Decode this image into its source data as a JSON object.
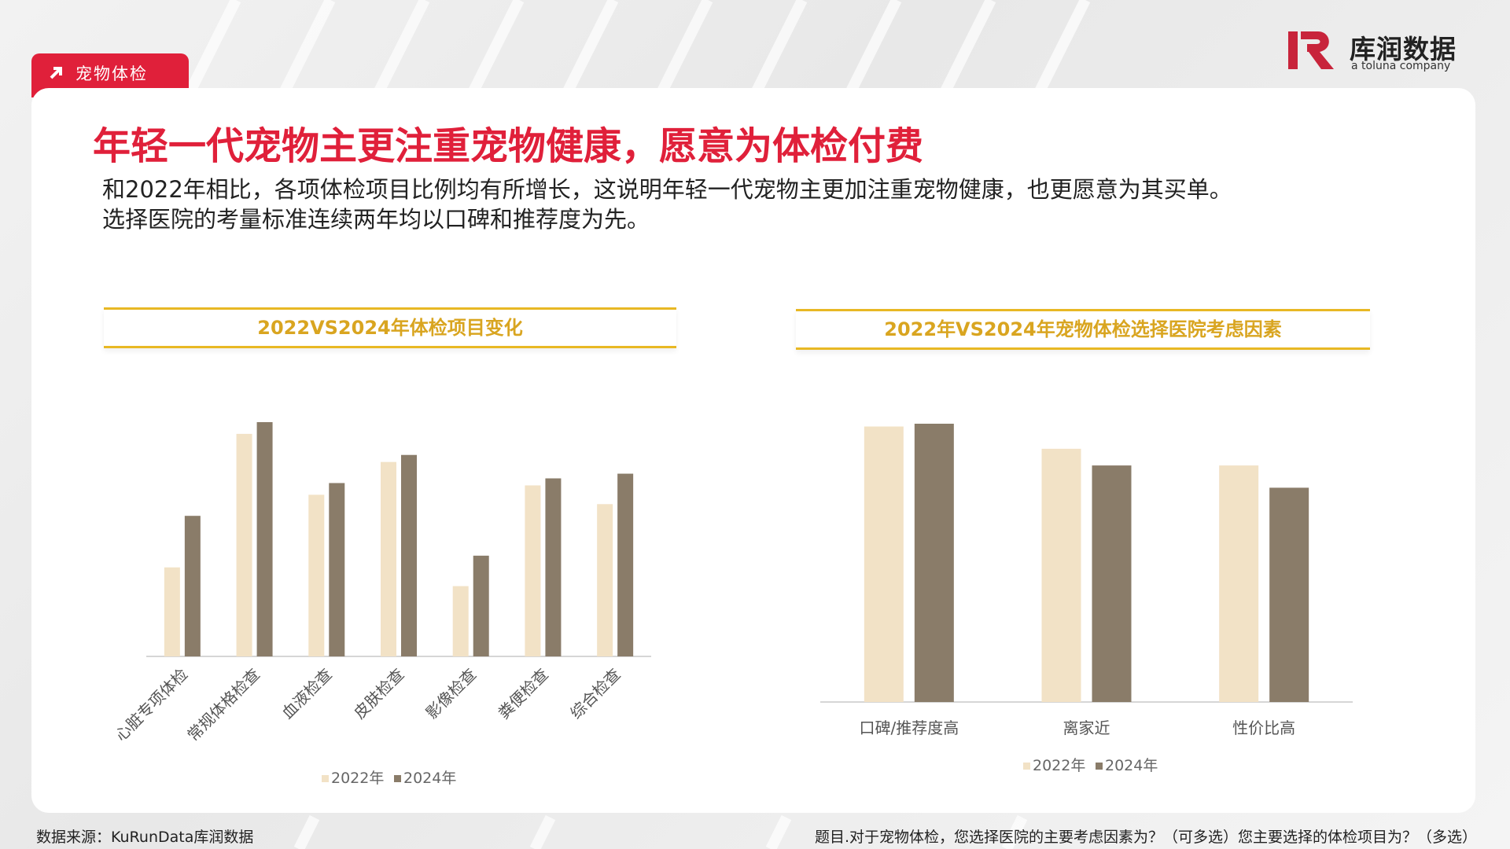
{
  "tag": {
    "label": "宠物体检"
  },
  "logo": {
    "name": "库润数据",
    "sub": "a toluna company"
  },
  "headline": "年轻一代宠物主更注重宠物健康，愿意为体检付费",
  "subtext": {
    "line1": "和2022年相比，各项体检项目比例均有所增长，这说明年轻一代宠物主更加注重宠物健康，也更愿意为其买单。",
    "line2": "选择医院的考量标准连续两年均以口碑和推荐度为先。"
  },
  "colors": {
    "accent": "#e0203a",
    "gold": "#d9a520",
    "s2022": "#f2e2c6",
    "s2024": "#8a7c69"
  },
  "chart_data": [
    {
      "type": "bar",
      "title": "2022VS2024年体检项目变化",
      "categories": [
        "心脏专项体检",
        "常规体格检查",
        "血液检查",
        "皮肤检查",
        "影像检查",
        "粪便检查",
        "综合检查"
      ],
      "series": [
        {
          "name": "2022年",
          "values": [
            38,
            95,
            69,
            83,
            30,
            73,
            65
          ]
        },
        {
          "name": "2024年",
          "values": [
            60,
            100,
            74,
            86,
            43,
            76,
            78
          ]
        }
      ],
      "ylim": [
        0,
        100
      ],
      "legend": "bottom",
      "grid": false
    },
    {
      "type": "bar",
      "title": "2022年VS2024年宠物体检选择医院考虑因素",
      "categories": [
        "口碑/推荐度高",
        "离家近",
        "性价比高"
      ],
      "series": [
        {
          "name": "2022年",
          "values": [
            99,
            91,
            85
          ]
        },
        {
          "name": "2024年",
          "values": [
            100,
            85,
            77
          ]
        }
      ],
      "ylim": [
        0,
        100
      ],
      "legend": "bottom",
      "grid": false
    }
  ],
  "footer": {
    "source": "数据来源：KuRunData库润数据",
    "question": "题目.对于宠物体检，您选择医院的主要考虑因素为？（可多选）您主要选择的体检项目为？（多选）"
  }
}
